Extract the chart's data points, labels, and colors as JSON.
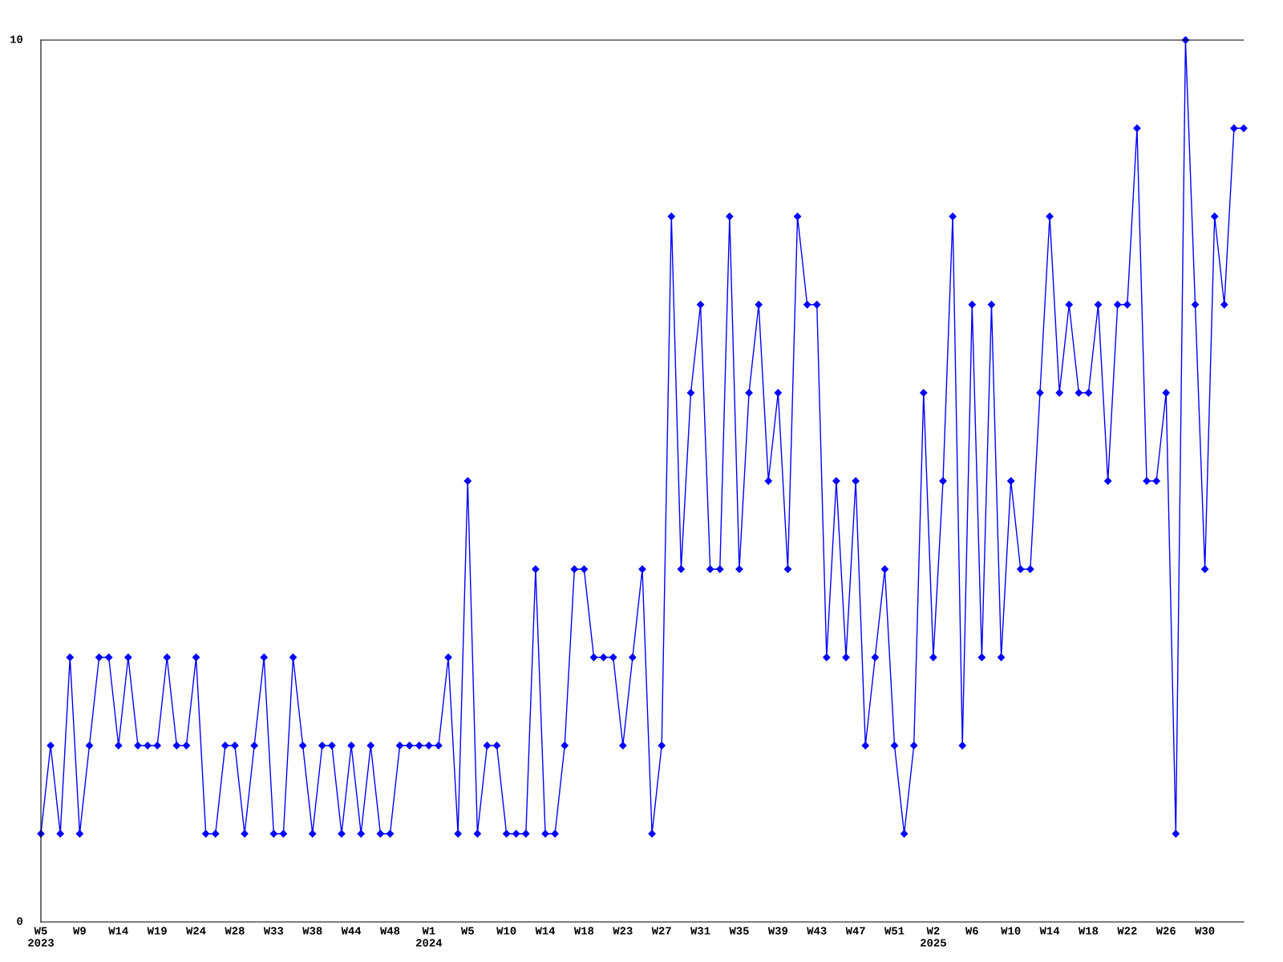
{
  "chart_data": {
    "type": "line",
    "categories": [
      "W5\n2023",
      null,
      null,
      null,
      "W9",
      null,
      null,
      null,
      "W14",
      null,
      null,
      null,
      "W19",
      null,
      null,
      null,
      "W24",
      null,
      null,
      null,
      "W28",
      null,
      null,
      null,
      "W33",
      null,
      null,
      null,
      "W38",
      null,
      null,
      null,
      "W44",
      null,
      null,
      null,
      "W48",
      null,
      null,
      null,
      "W1\n2024",
      null,
      null,
      null,
      "W5",
      null,
      null,
      null,
      "W10",
      null,
      null,
      null,
      "W14",
      null,
      null,
      null,
      "W18",
      null,
      null,
      null,
      "W23",
      null,
      null,
      null,
      "W27",
      null,
      null,
      null,
      "W31",
      null,
      null,
      null,
      "W35",
      null,
      null,
      null,
      "W39",
      null,
      null,
      null,
      "W43",
      null,
      null,
      null,
      "W47",
      null,
      null,
      null,
      "W51",
      null,
      null,
      null,
      "W2\n2025",
      null,
      null,
      null,
      "W6",
      null,
      null,
      null,
      "W10",
      null,
      null,
      null,
      "W14",
      null,
      null,
      null,
      "W18",
      null,
      null,
      null,
      "W22",
      null,
      null,
      null,
      "W26",
      null,
      null,
      null,
      "W30",
      null,
      null,
      null,
      null
    ],
    "series": [
      {
        "color": "#0000ff",
        "values": [
          1,
          2,
          1,
          3,
          1,
          2,
          3,
          3,
          2,
          3,
          2,
          2,
          2,
          3,
          2,
          2,
          3,
          1,
          1,
          2,
          2,
          1,
          2,
          3,
          1,
          1,
          3,
          2,
          1,
          2,
          2,
          1,
          2,
          1,
          2,
          1,
          1,
          2,
          2,
          2,
          2,
          2,
          3,
          1,
          5,
          1,
          2,
          2,
          1,
          1,
          1,
          4,
          1,
          1,
          2,
          4,
          4,
          3,
          3,
          3,
          2,
          3,
          4,
          1,
          2,
          8,
          4,
          6,
          7,
          4,
          4,
          8,
          4,
          6,
          7,
          5,
          6,
          4,
          8,
          7,
          7,
          3,
          5,
          3,
          5,
          2,
          3,
          4,
          2,
          1,
          2,
          6,
          3,
          5,
          8,
          2,
          7,
          3,
          7,
          3,
          5,
          4,
          4,
          6,
          8,
          6,
          7,
          6,
          6,
          7,
          5,
          7,
          7,
          9,
          5,
          5,
          6,
          1,
          10,
          7,
          4,
          8,
          7,
          9,
          9
        ]
      }
    ],
    "ylim": [
      0,
      10
    ],
    "yticks": [
      0,
      10
    ],
    "grid": false,
    "marker": "diamond",
    "line_style": "solid",
    "legend": false
  }
}
